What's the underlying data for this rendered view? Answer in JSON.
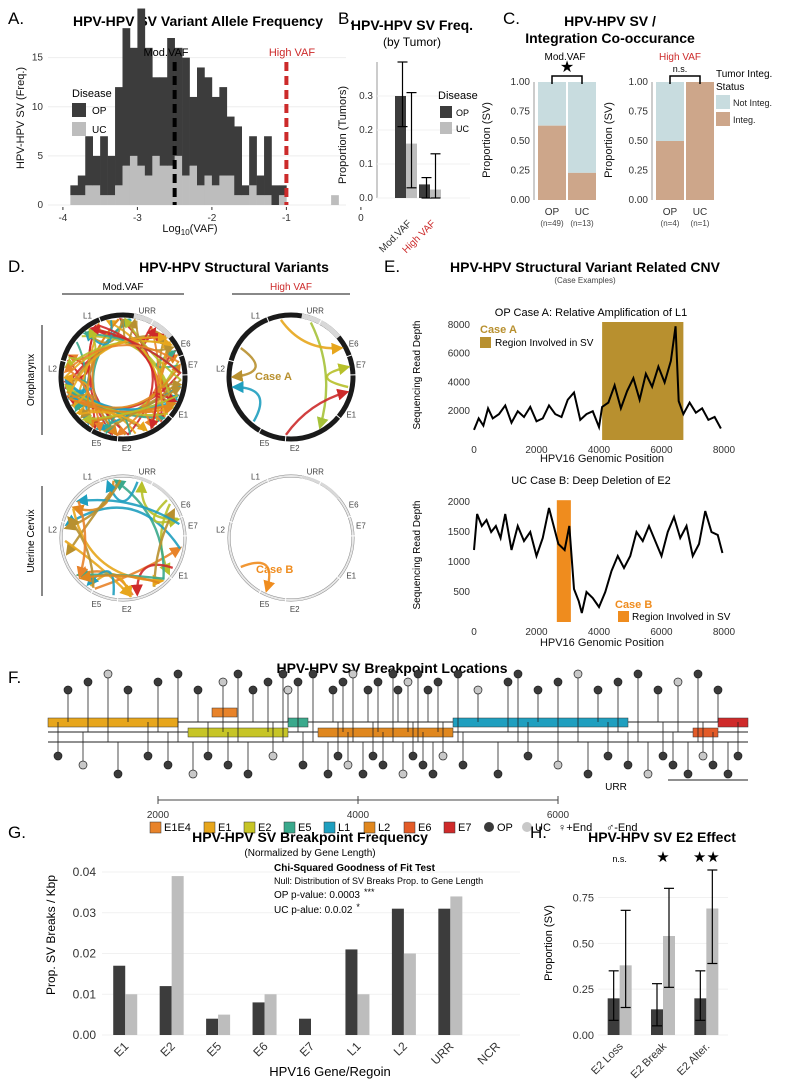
{
  "colors": {
    "op": "#3c3c3c",
    "uc": "#bdbdbd",
    "red": "#cc2a2a",
    "gold": "#b8902f",
    "orange": "#ef8c1e",
    "notinteg": "#c8dcdf",
    "integ": "#cda68a",
    "E1E4": "#e8832a",
    "E1": "#e7a61c",
    "E2": "#c7c526",
    "E5": "#3aa98c",
    "L1": "#1f9fbf",
    "L2": "#e0871e",
    "E6": "#e35b28",
    "E7": "#cf2a2a"
  },
  "panelA": {
    "letter": "A.",
    "title": "HPV-HPV SV Variant Allele Frequency",
    "ylabel": "HPV-HPV SV (Freq.)",
    "xlabel": "Log",
    "xlabel_sub": "10",
    "xlabel_tail": "(VAF)",
    "legend_title": "Disease",
    "legend_op": "OP",
    "legend_uc": "UC",
    "mod_label": "Mod.VAF",
    "high_label": "High VAF",
    "xticks": [
      "-4",
      "-3",
      "-2",
      "-1",
      "0"
    ],
    "yticks": [
      "0",
      "5",
      "10",
      "15"
    ]
  },
  "panelB": {
    "letter": "B.",
    "title": "HPV-HPV SV Freq.",
    "subtitle": "(by Tumor)",
    "ylabel": "Proportion (Tumors)",
    "legend_title": "Disease",
    "legend_op": "OP",
    "legend_uc": "UC",
    "yticks": [
      "0.0",
      "0.1",
      "0.2",
      "0.3"
    ],
    "cat_mod": "Mod.VAF",
    "cat_high": "High VAF"
  },
  "panelC": {
    "letter": "C.",
    "title1": "HPV-HPV SV /",
    "title2": "Integration Co-occurance",
    "ylabel": "Proportion (SV)",
    "yticks": [
      "0.00",
      "0.25",
      "0.50",
      "0.75",
      "1.00"
    ],
    "left_label": "Mod.VAF",
    "right_label": "High VAF",
    "left_sig": "★",
    "right_sig": "n.s.",
    "cats_left": [
      "OP",
      "UC"
    ],
    "ns_left": [
      "(n=49)",
      "(n=13)"
    ],
    "cats_right": [
      "OP",
      "UC"
    ],
    "ns_right": [
      "(n=4)",
      "(n=1)"
    ],
    "legend_title1": "Tumor Integ.",
    "legend_title2": "Status",
    "legend_not": "Not Integ.",
    "legend_integ": "Integ."
  },
  "panelD": {
    "letter": "D.",
    "title": "HPV-HPV Structural Variants",
    "col_mod": "Mod.VAF",
    "col_high": "High VAF",
    "row_op": "Oropharynx",
    "row_uc": "Uterine Cervix",
    "labels": [
      "L1",
      "URR",
      "E6",
      "E7",
      "E1",
      "E2",
      "E5",
      "L2"
    ],
    "case_a": "Case A",
    "case_b": "Case B"
  },
  "panelE": {
    "letter": "E.",
    "title": "HPV-HPV Structural Variant Related CNV",
    "subtitle": "(Case Examples)",
    "top_title": "OP Case A: Relative Amplification of L1",
    "top_case": "Case A",
    "top_legend": "Region Involved in SV",
    "bot_title": "UC Case B: Deep Deletion of E2",
    "bot_case": "Case B",
    "bot_legend": "Region Involved in SV",
    "ylabel": "Sequencing Read Depth",
    "xlabel": "HPV16 Genomic Position",
    "top_yticks": [
      "2000",
      "4000",
      "6000",
      "8000"
    ],
    "bot_yticks": [
      "500",
      "1000",
      "1500",
      "2000"
    ],
    "xticks": [
      "0",
      "2000",
      "4000",
      "6000",
      "8000"
    ]
  },
  "panelF": {
    "letter": "F.",
    "title": "HPV-HPV SV Breakpoint Locations",
    "urr": "URR",
    "xticks": [
      "2000",
      "4000",
      "6000"
    ],
    "legend": [
      "E1E4",
      "E1",
      "E2",
      "E5",
      "L1",
      "L2",
      "E6",
      "E7"
    ],
    "leg_op": "OP",
    "leg_uc": "UC",
    "leg_plus": "+End",
    "leg_minus": "-End"
  },
  "panelG": {
    "letter": "G.",
    "title": "HPV-HPV SV Breakpoint Frequency",
    "subtitle": "(Normalized by Gene Length)",
    "ylabel": "Prop. SV Breaks / Kbp",
    "xlabel": "HPV16 Gene/Regoin",
    "yticks": [
      "0.00",
      "0.01",
      "0.02",
      "0.03",
      "0.04"
    ],
    "test_title": "Chi-Squared Goodness of Fit Test",
    "test_null": "Null: Distribution of SV Breaks Prop. to Gene Length",
    "op_p": "OP p-value: 0.0003",
    "op_sig": "***",
    "uc_p": "UC p-alue:  0.0.02",
    "uc_sig": "*"
  },
  "panelH": {
    "letter": "H.",
    "title": "HPV-HPV SV E2 Effect",
    "ylabel": "Proportion (SV)",
    "yticks": [
      "0.00",
      "0.25",
      "0.50",
      "0.75"
    ],
    "sig": [
      "n.s.",
      "★",
      "★★"
    ]
  },
  "chart_data": [
    {
      "type": "bar",
      "panel": "A",
      "title": "HPV-HPV SV Variant Allele Frequency",
      "xlabel": "Log10(VAF)",
      "ylabel": "HPV-HPV SV (Freq.)",
      "xlim": [
        -4.2,
        -0.2
      ],
      "ylim": [
        0,
        17
      ],
      "bin_width": 0.1,
      "x": [
        -3.95,
        -3.85,
        -3.75,
        -3.65,
        -3.55,
        -3.45,
        -3.35,
        -3.25,
        -3.15,
        -3.05,
        -2.95,
        -2.85,
        -2.75,
        -2.65,
        -2.55,
        -2.45,
        -2.35,
        -2.25,
        -2.15,
        -2.05,
        -1.95,
        -1.85,
        -1.75,
        -1.65,
        -1.55,
        -1.45,
        -1.35,
        -1.25,
        -1.15,
        -1.05,
        -0.95,
        -0.85,
        -0.75,
        -0.65,
        -0.55,
        -0.45,
        -0.35
      ],
      "series": [
        {
          "name": "OP",
          "values": [
            0,
            1,
            2,
            5,
            3,
            6,
            4,
            10,
            14,
            11,
            16,
            13,
            8,
            9,
            13,
            11,
            12,
            7,
            12,
            10,
            9,
            9,
            6,
            7,
            1,
            5,
            2,
            6,
            2,
            1,
            0,
            0,
            0,
            0,
            0,
            0,
            0
          ]
        },
        {
          "name": "UC",
          "values": [
            0,
            1,
            1,
            2,
            2,
            1,
            1,
            2,
            4,
            5,
            4,
            3,
            5,
            4,
            4,
            5,
            3,
            4,
            2,
            3,
            2,
            3,
            3,
            1,
            1,
            2,
            1,
            1,
            0,
            1,
            0,
            0,
            0,
            0,
            0,
            0,
            1
          ]
        }
      ],
      "vlines": [
        {
          "label": "Mod.VAF",
          "x": -2.5
        },
        {
          "label": "High VAF",
          "x": -1.0
        }
      ]
    },
    {
      "type": "bar",
      "panel": "B",
      "title": "HPV-HPV SV Freq.",
      "ylabel": "Proportion (Tumors)",
      "categories": [
        "Mod.VAF",
        "High VAF"
      ],
      "ylim": [
        0,
        0.4
      ],
      "series": [
        {
          "name": "OP",
          "values": [
            0.3,
            0.04
          ],
          "lower": [
            0.21,
            0.0
          ],
          "upper": [
            0.4,
            0.06
          ]
        },
        {
          "name": "UC",
          "values": [
            0.16,
            0.025
          ],
          "lower": [
            0.03,
            0.0
          ],
          "upper": [
            0.31,
            0.13
          ]
        }
      ]
    },
    {
      "type": "bar",
      "panel": "C",
      "title": "HPV-HPV SV / Integration Co-occurance",
      "ylabel": "Proportion (SV)",
      "ylim": [
        0,
        1
      ],
      "groups": [
        {
          "label": "Mod.VAF",
          "categories": [
            "OP",
            "UC"
          ],
          "n": [
            49,
            13
          ],
          "integ": [
            0.63,
            0.23
          ]
        },
        {
          "label": "High VAF",
          "categories": [
            "OP",
            "UC"
          ],
          "n": [
            4,
            1
          ],
          "integ": [
            0.5,
            1.0
          ]
        }
      ],
      "series": [
        {
          "name": "Not Integ."
        },
        {
          "name": "Integ."
        }
      ]
    },
    {
      "type": "line",
      "panel": "E-top",
      "title": "OP Case A: Relative Amplification of L1",
      "xlabel": "HPV16 Genomic Position",
      "ylabel": "Sequencing Read Depth",
      "xlim": [
        0,
        8000
      ],
      "ylim": [
        0,
        8200
      ],
      "region": [
        4100,
        6700
      ],
      "x": [
        0,
        150,
        300,
        450,
        600,
        800,
        1000,
        1200,
        1400,
        1600,
        1800,
        2000,
        2200,
        2400,
        2600,
        2800,
        3000,
        3200,
        3400,
        3600,
        3800,
        4000,
        4100,
        4300,
        4500,
        4700,
        4900,
        5100,
        5300,
        5500,
        5700,
        5900,
        6100,
        6300,
        6450,
        6550,
        6700,
        6900,
        7100,
        7300,
        7500,
        7700,
        7900
      ],
      "y": [
        700,
        1500,
        1000,
        2200,
        1500,
        1800,
        2400,
        1200,
        2000,
        1600,
        2300,
        1300,
        1500,
        2400,
        1800,
        1600,
        2800,
        3300,
        1400,
        1800,
        2000,
        900,
        2300,
        2600,
        3800,
        2200,
        3400,
        4300,
        2800,
        4600,
        3700,
        5100,
        4000,
        5500,
        7900,
        2700,
        1800,
        2600,
        1900,
        2200,
        1400,
        1600,
        800
      ]
    },
    {
      "type": "line",
      "panel": "E-bot",
      "title": "UC Case B: Deep Deletion of E2",
      "xlabel": "HPV16 Genomic Position",
      "ylabel": "Sequencing Read Depth",
      "xlim": [
        0,
        8000
      ],
      "ylim": [
        0,
        2100
      ],
      "region": [
        2650,
        3100
      ],
      "x": [
        0,
        100,
        250,
        400,
        550,
        700,
        850,
        1000,
        1200,
        1400,
        1600,
        1800,
        2000,
        2200,
        2400,
        2600,
        2700,
        2900,
        3050,
        3200,
        3350,
        3450,
        3600,
        3800,
        4000,
        4200,
        4400,
        4600,
        4800,
        5000,
        5200,
        5400,
        5600,
        5800,
        6000,
        6200,
        6400,
        6600,
        6800,
        7000,
        7200,
        7400,
        7600,
        7800,
        7950
      ],
      "y": [
        1200,
        1800,
        1600,
        1700,
        1500,
        1600,
        1400,
        1800,
        1200,
        1600,
        1350,
        1500,
        1100,
        1400,
        1900,
        1500,
        1300,
        1200,
        1600,
        550,
        350,
        150,
        500,
        400,
        250,
        500,
        850,
        1100,
        900,
        1100,
        1500,
        1350,
        1600,
        1350,
        1100,
        1500,
        1750,
        1400,
        1600,
        1100,
        1300,
        1850,
        1500,
        1450,
        1150
      ]
    },
    {
      "type": "bar",
      "panel": "G",
      "title": "HPV-HPV SV Breakpoint Frequency",
      "xlabel": "HPV16 Gene/Regoin",
      "ylabel": "Prop. SV Breaks / Kbp",
      "categories": [
        "E1",
        "E2",
        "E5",
        "E6",
        "E7",
        "L1",
        "L2",
        "URR",
        "NCR"
      ],
      "ylim": [
        0,
        0.04
      ],
      "series": [
        {
          "name": "OP",
          "values": [
            0.017,
            0.012,
            0.004,
            0.008,
            0.004,
            0.021,
            0.031,
            0.031,
            0
          ]
        },
        {
          "name": "UC",
          "values": [
            0.01,
            0.039,
            0.005,
            0.01,
            0,
            0.01,
            0.02,
            0.034,
            0
          ]
        }
      ]
    },
    {
      "type": "bar",
      "panel": "H",
      "title": "HPV-HPV SV E2 Effect",
      "ylabel": "Proportion (SV)",
      "categories": [
        "E2 Loss",
        "E2 Break",
        "E2 Alter."
      ],
      "ylim": [
        0,
        0.9
      ],
      "series": [
        {
          "name": "OP",
          "values": [
            0.2,
            0.14,
            0.2
          ],
          "lower": [
            0.08,
            0.05,
            0.08
          ],
          "upper": [
            0.35,
            0.28,
            0.35
          ]
        },
        {
          "name": "UC",
          "values": [
            0.38,
            0.54,
            0.69
          ],
          "lower": [
            0.15,
            0.26,
            0.39
          ],
          "upper": [
            0.68,
            0.8,
            0.9
          ]
        }
      ]
    }
  ]
}
